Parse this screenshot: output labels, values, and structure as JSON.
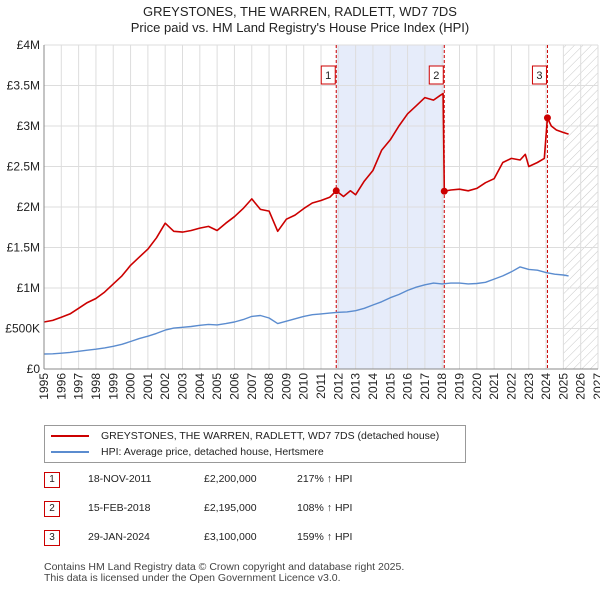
{
  "title_line1": "GREYSTONES, THE WARREN, RADLETT, WD7 7DS",
  "title_line2": "Price paid vs. HM Land Registry's House Price Index (HPI)",
  "colors": {
    "property": "#cc0000",
    "hpi": "#5b8ccf",
    "shade": "#e6ecfa",
    "marker_line": "#cc0000"
  },
  "chart_data": {
    "type": "line",
    "xlim": [
      1995,
      2027
    ],
    "ylim": [
      0,
      4000000
    ],
    "x_ticks": [
      1995,
      1996,
      1997,
      1998,
      1999,
      2000,
      2001,
      2002,
      2003,
      2004,
      2005,
      2006,
      2007,
      2008,
      2009,
      2010,
      2011,
      2012,
      2013,
      2014,
      2015,
      2016,
      2017,
      2018,
      2019,
      2020,
      2021,
      2022,
      2023,
      2024,
      2025,
      2026,
      2027
    ],
    "y_ticks": [
      {
        "value": 0,
        "label": "£0"
      },
      {
        "value": 500000,
        "label": "£500K"
      },
      {
        "value": 1000000,
        "label": "£1M"
      },
      {
        "value": 1500000,
        "label": "£1.5M"
      },
      {
        "value": 2000000,
        "label": "£2M"
      },
      {
        "value": 2500000,
        "label": "£2.5M"
      },
      {
        "value": 3000000,
        "label": "£3M"
      },
      {
        "value": 3500000,
        "label": "£3.5M"
      },
      {
        "value": 4000000,
        "label": "£4M"
      }
    ],
    "shaded_ranges": [
      [
        2011.88,
        2018.12
      ]
    ],
    "future_hatch_from": 2025.0,
    "series": [
      {
        "name": "GREYSTONES, THE WARREN, RADLETT, WD7 7DS (detached house)",
        "color": "#cc0000",
        "x": [
          1995.0,
          1995.5,
          1996.0,
          1996.5,
          1997.0,
          1997.5,
          1998.0,
          1998.5,
          1999.0,
          1999.5,
          2000.0,
          2000.5,
          2001.0,
          2001.5,
          2002.0,
          2002.5,
          2003.0,
          2003.5,
          2004.0,
          2004.5,
          2005.0,
          2005.5,
          2006.0,
          2006.5,
          2007.0,
          2007.5,
          2008.0,
          2008.5,
          2009.0,
          2009.5,
          2010.0,
          2010.5,
          2011.0,
          2011.5,
          2011.88,
          2012.3,
          2012.7,
          2013.0,
          2013.5,
          2014.0,
          2014.5,
          2015.0,
          2015.5,
          2016.0,
          2016.5,
          2017.0,
          2017.5,
          2017.9,
          2018.05,
          2018.12,
          2018.5,
          2019.0,
          2019.5,
          2020.0,
          2020.5,
          2021.0,
          2021.5,
          2022.0,
          2022.5,
          2022.8,
          2023.0,
          2023.5,
          2023.9,
          2024.08,
          2024.3,
          2024.6,
          2025.0,
          2025.3
        ],
        "values": [
          580000,
          600000,
          640000,
          680000,
          750000,
          820000,
          870000,
          950000,
          1050000,
          1150000,
          1280000,
          1380000,
          1480000,
          1620000,
          1800000,
          1700000,
          1690000,
          1710000,
          1740000,
          1760000,
          1710000,
          1800000,
          1880000,
          1980000,
          2100000,
          1970000,
          1950000,
          1700000,
          1850000,
          1900000,
          1980000,
          2050000,
          2080000,
          2120000,
          2200000,
          2130000,
          2200000,
          2150000,
          2320000,
          2450000,
          2700000,
          2830000,
          3000000,
          3150000,
          3250000,
          3350000,
          3320000,
          3380000,
          3400000,
          2195000,
          2210000,
          2220000,
          2200000,
          2230000,
          2300000,
          2350000,
          2550000,
          2600000,
          2580000,
          2650000,
          2500000,
          2550000,
          2600000,
          3100000,
          3000000,
          2950000,
          2920000,
          2900000
        ]
      },
      {
        "name": "HPI: Average price, detached house, Hertsmere",
        "color": "#5b8ccf",
        "x": [
          1995.0,
          1995.5,
          1996.0,
          1996.5,
          1997.0,
          1997.5,
          1998.0,
          1998.5,
          1999.0,
          1999.5,
          2000.0,
          2000.5,
          2001.0,
          2001.5,
          2002.0,
          2002.5,
          2003.0,
          2003.5,
          2004.0,
          2004.5,
          2005.0,
          2005.5,
          2006.0,
          2006.5,
          2007.0,
          2007.5,
          2008.0,
          2008.5,
          2009.0,
          2009.5,
          2010.0,
          2010.5,
          2011.0,
          2011.5,
          2012.0,
          2012.5,
          2013.0,
          2013.5,
          2014.0,
          2014.5,
          2015.0,
          2015.5,
          2016.0,
          2016.5,
          2017.0,
          2017.5,
          2018.0,
          2018.5,
          2019.0,
          2019.5,
          2020.0,
          2020.5,
          2021.0,
          2021.5,
          2022.0,
          2022.5,
          2023.0,
          2023.5,
          2024.0,
          2024.5,
          2025.0,
          2025.3
        ],
        "values": [
          185000,
          188000,
          195000,
          205000,
          218000,
          232000,
          245000,
          260000,
          280000,
          305000,
          340000,
          375000,
          405000,
          440000,
          480000,
          505000,
          515000,
          525000,
          540000,
          550000,
          545000,
          560000,
          580000,
          610000,
          650000,
          660000,
          630000,
          560000,
          590000,
          620000,
          650000,
          670000,
          680000,
          690000,
          700000,
          705000,
          720000,
          750000,
          790000,
          830000,
          880000,
          920000,
          970000,
          1010000,
          1040000,
          1060000,
          1050000,
          1060000,
          1060000,
          1050000,
          1055000,
          1070000,
          1110000,
          1150000,
          1200000,
          1260000,
          1230000,
          1220000,
          1190000,
          1170000,
          1160000,
          1150000
        ]
      }
    ],
    "sale_markers": [
      {
        "label": "1",
        "x": 2011.88,
        "y": 2200000
      },
      {
        "label": "2",
        "x": 2018.12,
        "y": 2195000
      },
      {
        "label": "3",
        "x": 2024.08,
        "y": 3100000
      }
    ]
  },
  "legend": {
    "property_label": "GREYSTONES, THE WARREN, RADLETT, WD7 7DS (detached house)",
    "hpi_label": "HPI: Average price, detached house, Hertsmere"
  },
  "sales": [
    {
      "num": "1",
      "date": "18-NOV-2011",
      "price": "£2,200,000",
      "hpi": "217% ↑ HPI"
    },
    {
      "num": "2",
      "date": "15-FEB-2018",
      "price": "£2,195,000",
      "hpi": "108% ↑ HPI"
    },
    {
      "num": "3",
      "date": "29-JAN-2024",
      "price": "£3,100,000",
      "hpi": "159% ↑ HPI"
    }
  ],
  "footer_line1": "Contains HM Land Registry data © Crown copyright and database right 2025.",
  "footer_line2": "This data is licensed under the Open Government Licence v3.0."
}
